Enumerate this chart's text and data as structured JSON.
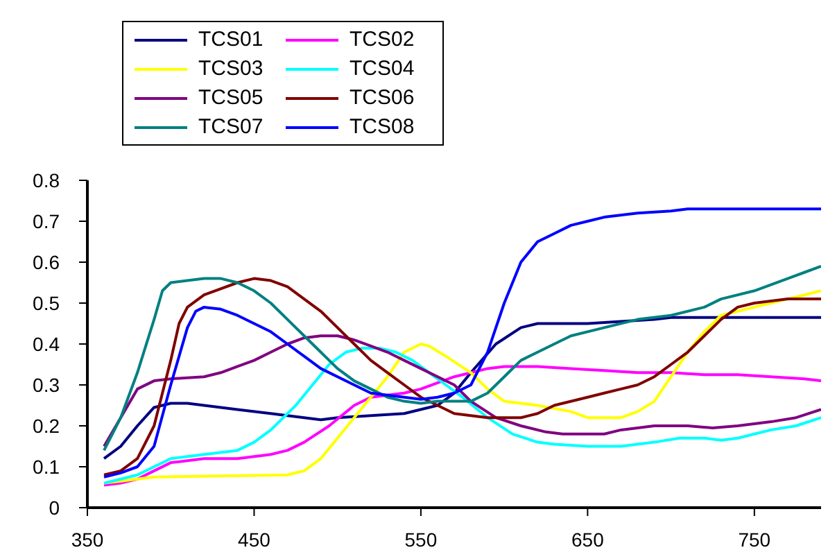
{
  "chart_data": {
    "type": "line",
    "xlim": [
      350,
      790
    ],
    "xticks": [
      350,
      450,
      550,
      650,
      750
    ],
    "ylim": [
      0,
      0.8
    ],
    "yticks": [
      0,
      0.1,
      0.2,
      0.3,
      0.4,
      0.5,
      0.6,
      0.7,
      0.8
    ],
    "legend": "top left",
    "grid": false,
    "series": [
      {
        "name": "TCS01",
        "color": "#000080",
        "x": [
          360,
          370,
          380,
          390,
          400,
          410,
          420,
          440,
          460,
          480,
          490,
          500,
          520,
          540,
          560,
          570,
          580,
          595,
          610,
          620,
          650,
          670,
          690,
          700,
          790
        ],
        "values": [
          0.12,
          0.15,
          0.2,
          0.245,
          0.255,
          0.255,
          0.25,
          0.24,
          0.23,
          0.22,
          0.215,
          0.22,
          0.225,
          0.23,
          0.25,
          0.28,
          0.33,
          0.4,
          0.44,
          0.45,
          0.45,
          0.455,
          0.46,
          0.465,
          0.465
        ]
      },
      {
        "name": "TCS02",
        "color": "#ff00ff",
        "x": [
          360,
          370,
          380,
          390,
          400,
          420,
          440,
          460,
          470,
          480,
          495,
          510,
          520,
          540,
          550,
          570,
          590,
          600,
          620,
          640,
          660,
          680,
          700,
          720,
          740,
          760,
          780,
          790
        ],
        "values": [
          0.055,
          0.06,
          0.07,
          0.09,
          0.11,
          0.12,
          0.12,
          0.13,
          0.14,
          0.16,
          0.2,
          0.25,
          0.27,
          0.28,
          0.29,
          0.32,
          0.34,
          0.345,
          0.345,
          0.34,
          0.335,
          0.33,
          0.33,
          0.325,
          0.325,
          0.32,
          0.315,
          0.31
        ]
      },
      {
        "name": "TCS03",
        "color": "#ffff00",
        "x": [
          360,
          370,
          380,
          390,
          470,
          480,
          490,
          500,
          510,
          520,
          530,
          540,
          550,
          555,
          565,
          580,
          590,
          600,
          620,
          640,
          650,
          670,
          680,
          690,
          700,
          710,
          720,
          730,
          740,
          750,
          760,
          770,
          780,
          790
        ],
        "values": [
          0.06,
          0.065,
          0.07,
          0.075,
          0.08,
          0.09,
          0.12,
          0.17,
          0.22,
          0.27,
          0.32,
          0.38,
          0.4,
          0.395,
          0.37,
          0.33,
          0.29,
          0.26,
          0.25,
          0.235,
          0.22,
          0.22,
          0.235,
          0.26,
          0.32,
          0.38,
          0.43,
          0.47,
          0.48,
          0.49,
          0.5,
          0.51,
          0.52,
          0.53
        ]
      },
      {
        "name": "TCS04",
        "color": "#00ffff",
        "x": [
          360,
          370,
          380,
          390,
          400,
          420,
          440,
          450,
          460,
          475,
          485,
          495,
          505,
          515,
          525,
          535,
          545,
          555,
          565,
          575,
          590,
          605,
          620,
          630,
          650,
          670,
          690,
          705,
          720,
          730,
          740,
          750,
          760,
          775,
          790
        ],
        "values": [
          0.06,
          0.07,
          0.08,
          0.1,
          0.12,
          0.13,
          0.14,
          0.16,
          0.19,
          0.25,
          0.3,
          0.35,
          0.38,
          0.39,
          0.39,
          0.38,
          0.36,
          0.33,
          0.3,
          0.27,
          0.22,
          0.18,
          0.16,
          0.155,
          0.15,
          0.15,
          0.16,
          0.17,
          0.17,
          0.165,
          0.17,
          0.18,
          0.19,
          0.2,
          0.22
        ]
      },
      {
        "name": "TCS05",
        "color": "#800080",
        "x": [
          360,
          370,
          380,
          390,
          400,
          420,
          430,
          440,
          450,
          460,
          470,
          480,
          490,
          500,
          510,
          520,
          530,
          540,
          550,
          570,
          580,
          595,
          610,
          625,
          635,
          660,
          670,
          690,
          710,
          725,
          740,
          760,
          775,
          790
        ],
        "values": [
          0.15,
          0.22,
          0.29,
          0.31,
          0.315,
          0.32,
          0.33,
          0.345,
          0.36,
          0.38,
          0.4,
          0.415,
          0.42,
          0.42,
          0.41,
          0.395,
          0.38,
          0.36,
          0.34,
          0.3,
          0.26,
          0.22,
          0.2,
          0.185,
          0.18,
          0.18,
          0.19,
          0.2,
          0.2,
          0.195,
          0.2,
          0.21,
          0.22,
          0.24
        ]
      },
      {
        "name": "TCS06",
        "color": "#800000",
        "x": [
          360,
          370,
          380,
          390,
          400,
          405,
          410,
          420,
          430,
          440,
          450,
          460,
          470,
          480,
          490,
          500,
          510,
          520,
          530,
          540,
          550,
          560,
          570,
          590,
          610,
          620,
          630,
          650,
          660,
          670,
          680,
          690,
          700,
          710,
          720,
          730,
          740,
          750,
          760,
          770,
          790
        ],
        "values": [
          0.08,
          0.09,
          0.12,
          0.2,
          0.36,
          0.45,
          0.49,
          0.52,
          0.535,
          0.55,
          0.56,
          0.555,
          0.54,
          0.51,
          0.48,
          0.44,
          0.4,
          0.36,
          0.33,
          0.3,
          0.27,
          0.25,
          0.23,
          0.22,
          0.22,
          0.23,
          0.25,
          0.27,
          0.28,
          0.29,
          0.3,
          0.32,
          0.35,
          0.38,
          0.42,
          0.46,
          0.49,
          0.5,
          0.505,
          0.51,
          0.51
        ]
      },
      {
        "name": "TCS07",
        "color": "#008080",
        "x": [
          360,
          370,
          380,
          390,
          395,
          400,
          410,
          420,
          430,
          440,
          450,
          460,
          470,
          480,
          490,
          500,
          510,
          520,
          530,
          540,
          550,
          560,
          570,
          580,
          590,
          600,
          610,
          620,
          630,
          640,
          660,
          680,
          700,
          720,
          730,
          750,
          770,
          780,
          790
        ],
        "values": [
          0.14,
          0.22,
          0.33,
          0.46,
          0.53,
          0.55,
          0.555,
          0.56,
          0.56,
          0.55,
          0.53,
          0.5,
          0.46,
          0.42,
          0.38,
          0.34,
          0.31,
          0.29,
          0.27,
          0.26,
          0.255,
          0.26,
          0.26,
          0.26,
          0.28,
          0.32,
          0.36,
          0.38,
          0.4,
          0.42,
          0.44,
          0.46,
          0.47,
          0.49,
          0.51,
          0.53,
          0.56,
          0.575,
          0.59
        ]
      },
      {
        "name": "TCS08",
        "color": "#0000ff",
        "x": [
          360,
          370,
          380,
          390,
          400,
          410,
          415,
          420,
          430,
          440,
          450,
          460,
          470,
          480,
          490,
          510,
          520,
          540,
          550,
          560,
          570,
          580,
          590,
          600,
          610,
          620,
          630,
          640,
          650,
          660,
          680,
          700,
          710,
          790
        ],
        "values": [
          0.075,
          0.085,
          0.1,
          0.15,
          0.3,
          0.44,
          0.48,
          0.49,
          0.485,
          0.47,
          0.45,
          0.43,
          0.4,
          0.37,
          0.34,
          0.3,
          0.28,
          0.27,
          0.265,
          0.27,
          0.28,
          0.3,
          0.38,
          0.5,
          0.6,
          0.65,
          0.67,
          0.69,
          0.7,
          0.71,
          0.72,
          0.725,
          0.73,
          0.73
        ]
      }
    ]
  }
}
